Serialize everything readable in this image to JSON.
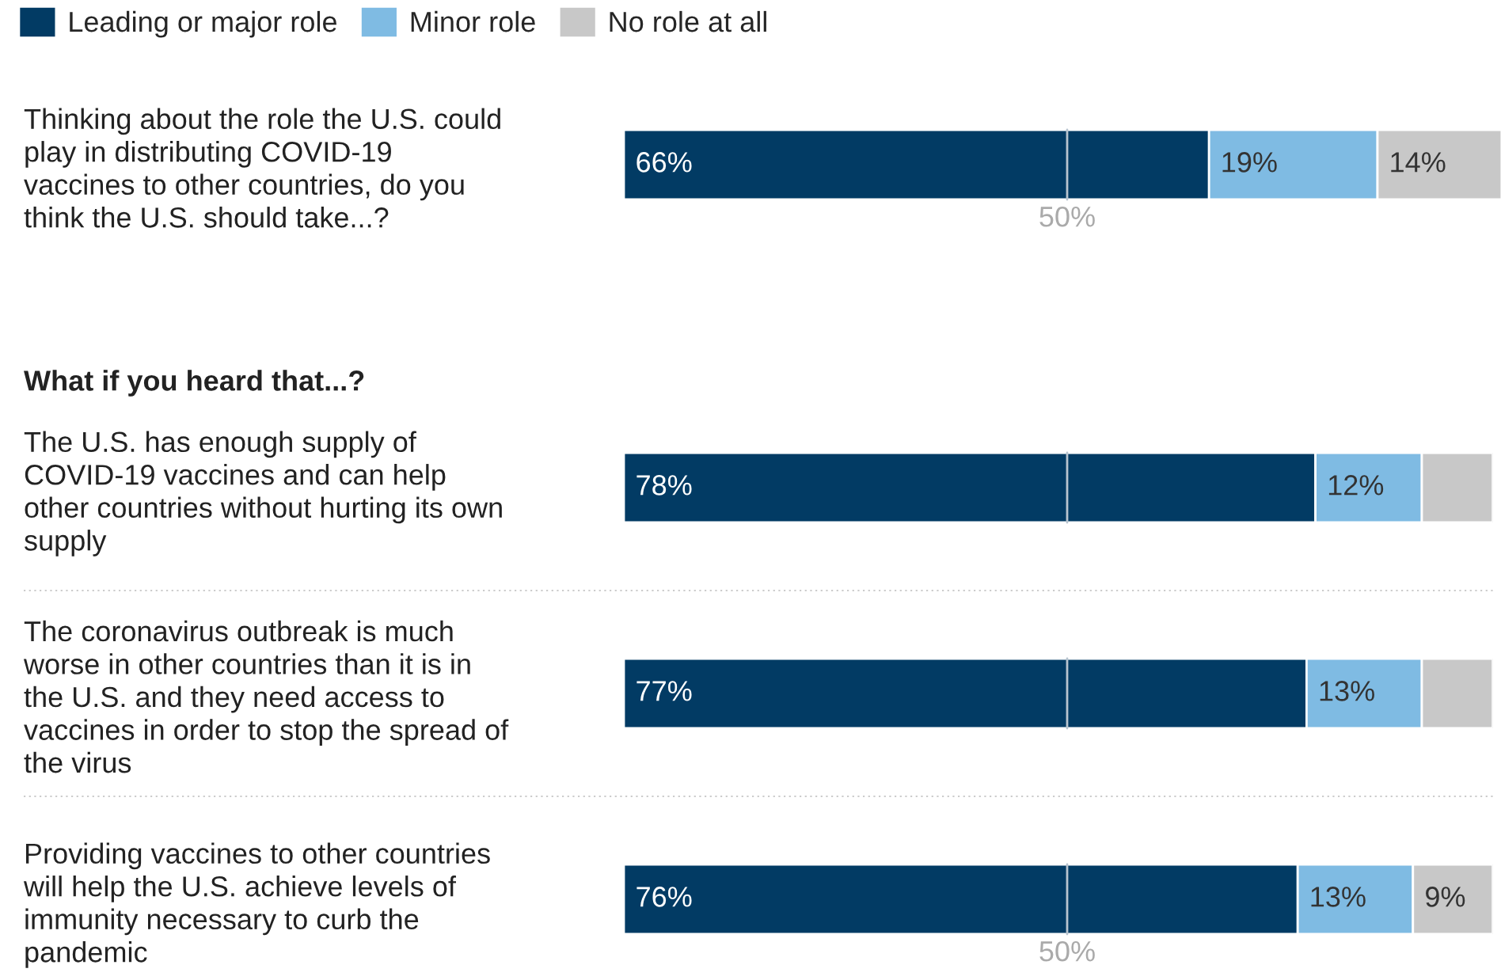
{
  "chart_data": [
    {
      "type": "bar",
      "orientation": "horizontal",
      "stacked": true,
      "categories": [
        "Thinking about the role the U.S. could\nplay in distributing COVID-19\nvaccines to other countries, do you\nthink the U.S. should take...?"
      ],
      "series": [
        {
          "name": "Leading or major role",
          "color": "#023b64",
          "values": [
            66
          ],
          "value_labels": [
            "66%"
          ]
        },
        {
          "name": "Minor role",
          "color": "#7fbbe3",
          "values": [
            19
          ],
          "value_labels": [
            "19%"
          ]
        },
        {
          "name": "No role at all",
          "color": "#c8c8c8",
          "values": [
            14
          ],
          "value_labels": [
            "14%"
          ]
        }
      ],
      "ref_lines": [
        {
          "axis": "x",
          "value": 50,
          "label": "50%",
          "color": "#b8c4cf"
        }
      ],
      "legend": "top"
    },
    {
      "type": "bar",
      "orientation": "horizontal",
      "stacked": true,
      "title": "What if you heard that...?",
      "categories": [
        "The U.S. has enough supply of\nCOVID-19 vaccines and can help\nother countries without hurting its own\nsupply",
        "The coronavirus outbreak is much\nworse in other countries than it is in\nthe U.S. and they need access to\nvaccines in order to stop the spread of\nthe virus",
        "Providing vaccines to other countries\nwill help the U.S. achieve levels of\nimmunity necessary to curb the\npandemic"
      ],
      "series": [
        {
          "color": "#023b64",
          "values": [
            78,
            77,
            76
          ],
          "value_labels": [
            "78%",
            "77%",
            "76%"
          ]
        },
        {
          "color": "#7fbbe3",
          "values": [
            12,
            13,
            13
          ],
          "value_labels": [
            "12%",
            "13%",
            "13%"
          ]
        },
        {
          "color": "#c8c8c8",
          "values": [
            8,
            8,
            9
          ],
          "value_labels": [
            null,
            null,
            "9%"
          ]
        }
      ],
      "ref_lines": [
        {
          "axis": "x",
          "value": 50,
          "label": "50%",
          "color": "#b8c4cf"
        }
      ]
    }
  ]
}
